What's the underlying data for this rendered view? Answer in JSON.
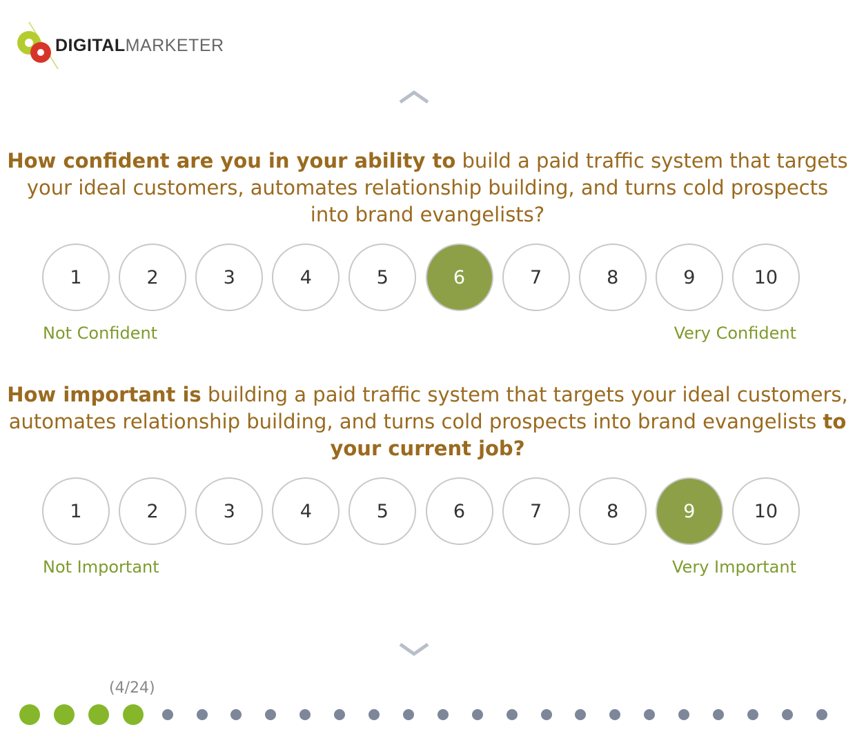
{
  "logo": {
    "bold": "DIGITAL",
    "light": "MARKETER"
  },
  "questions": [
    {
      "bold_prefix": "How confident are you in your ability to",
      "text": " build a paid traffic system that targets your ideal customers, automates relationship building, and turns cold prospects into brand evangelists?",
      "bold_suffix": "",
      "options": [
        "1",
        "2",
        "3",
        "4",
        "5",
        "6",
        "7",
        "8",
        "9",
        "10"
      ],
      "selected": "6",
      "low_label": "Not Confident",
      "high_label": "Very Confident"
    },
    {
      "bold_prefix": "How important is",
      "text": " building a paid traffic system that targets your ideal customers, automates relationship building, and turns cold prospects into brand evangelists ",
      "bold_suffix": "to your current job?",
      "options": [
        "1",
        "2",
        "3",
        "4",
        "5",
        "6",
        "7",
        "8",
        "9",
        "10"
      ],
      "selected": "9",
      "low_label": "Not Important",
      "high_label": "Very Important"
    }
  ],
  "progress": {
    "text": "(4/24)",
    "current": 4,
    "total": 24
  },
  "colors": {
    "question": "#9a6a1f",
    "selected": "#8da047",
    "scale_label": "#7f9b2e",
    "dot_done": "#86b72a",
    "dot_todo": "#7d8799"
  },
  "icons": {
    "prev": "chevron-up-icon",
    "next": "chevron-down-icon"
  }
}
